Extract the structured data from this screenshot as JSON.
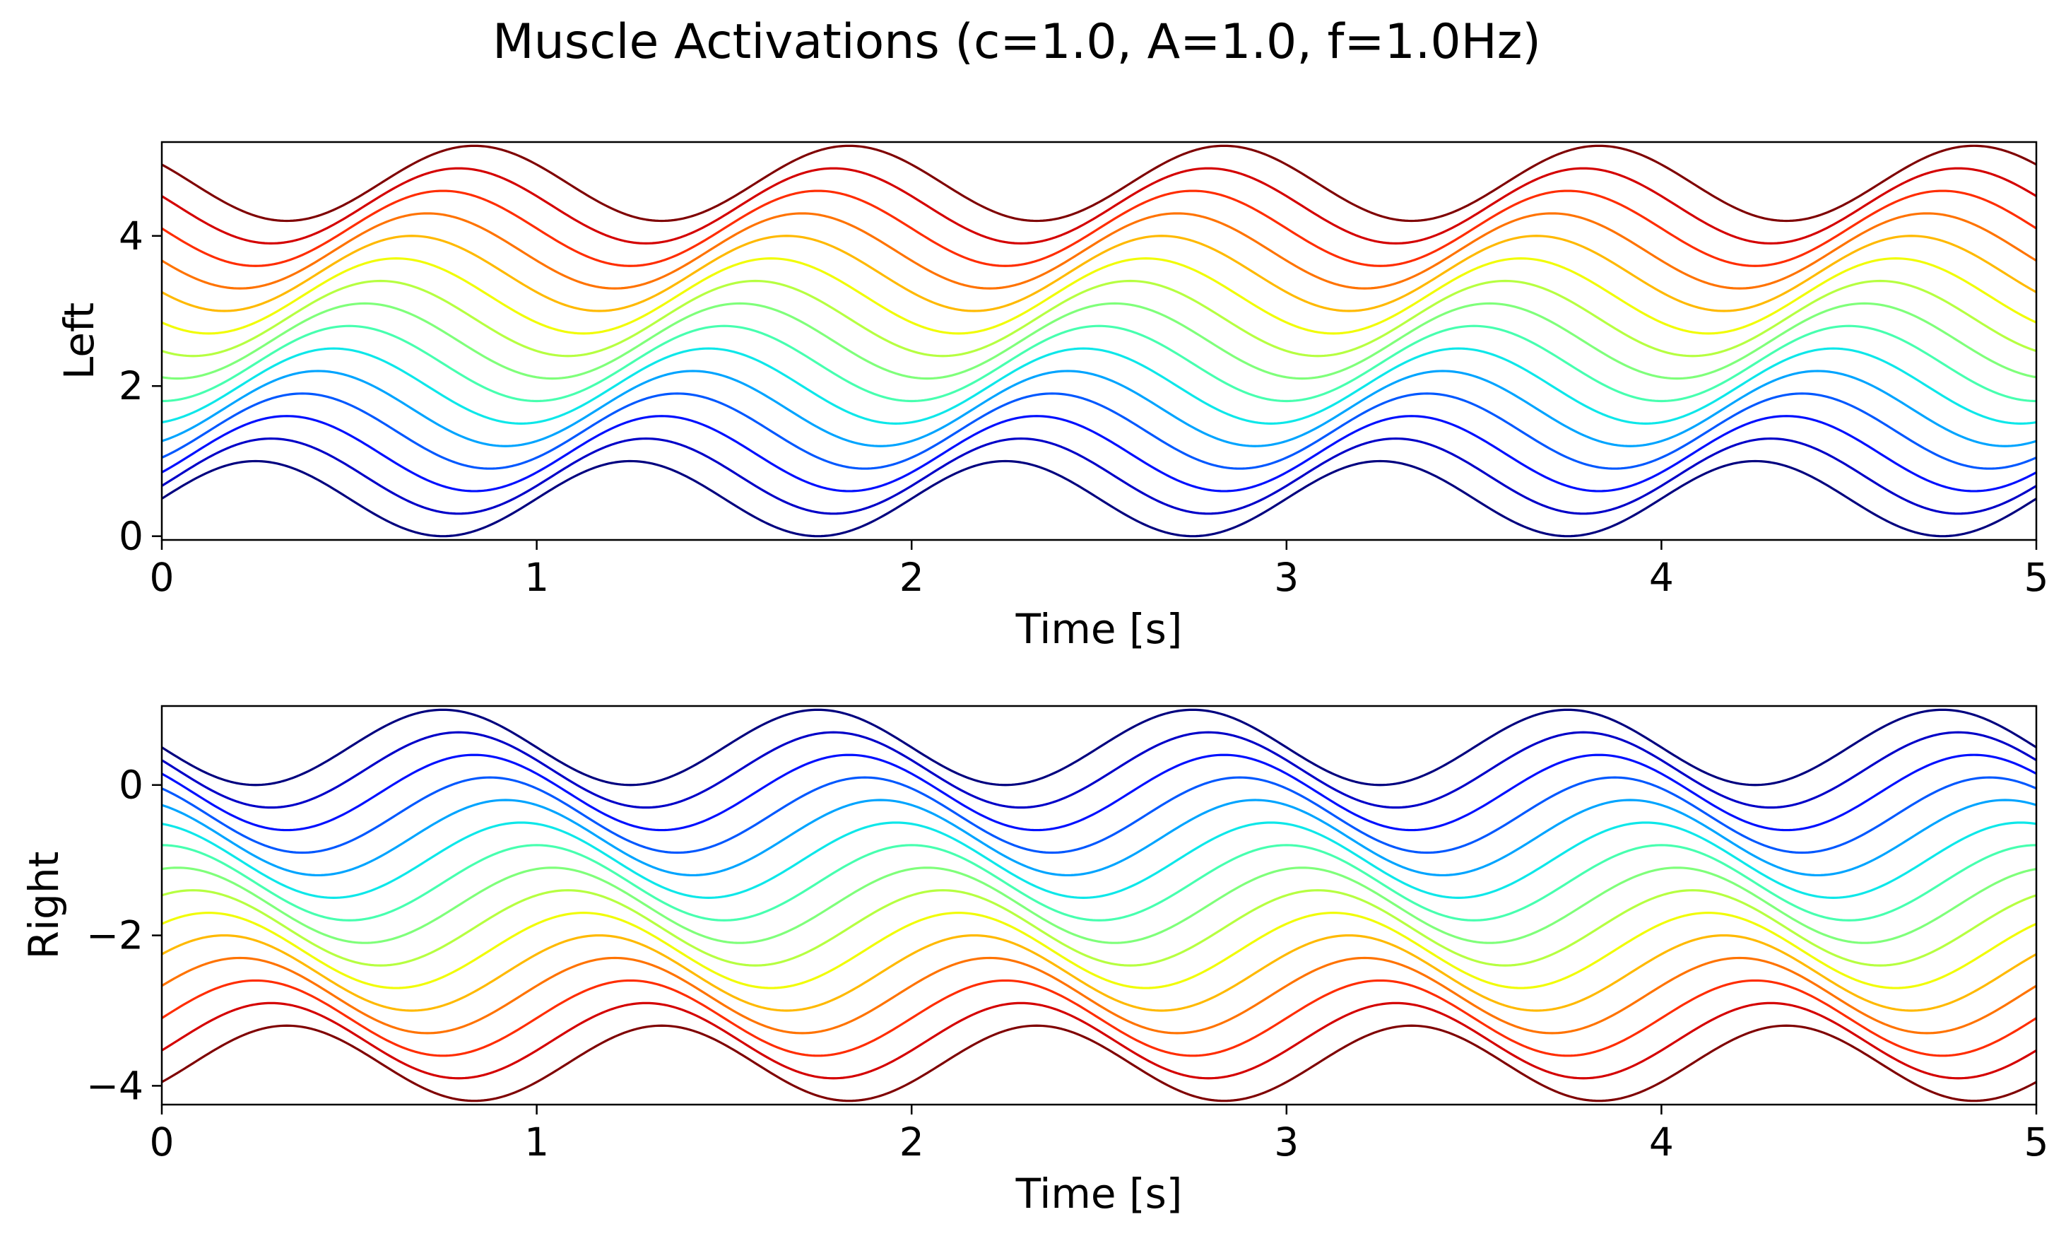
{
  "chart_data": {
    "title": "Muscle Activations (c=1.0, A=1.0, f=1.0Hz)",
    "params": {
      "c": 1.0,
      "A": 1.0,
      "f_hz": 1.0
    },
    "n_series": 15,
    "colormap": [
      "#00007f",
      "#0000c8",
      "#0010ff",
      "#0058ff",
      "#00a4ff",
      "#0de7e9",
      "#47ffaf",
      "#7fff7a",
      "#b6ff41",
      "#f1fc06",
      "#ffb900",
      "#ff7300",
      "#ff2d00",
      "#d40000",
      "#7f0000"
    ],
    "time_range": [
      0,
      5
    ],
    "subplots": [
      {
        "type": "line",
        "ylabel": "Left",
        "xlabel": "Time [s]",
        "xlim": [
          0,
          5
        ],
        "ylim": [
          -0.05,
          5.25
        ],
        "xticks": [
          "0",
          "1",
          "2",
          "3",
          "4",
          "5"
        ],
        "yticks": [
          "0",
          "2",
          "4"
        ],
        "ytick_values": [
          0,
          2,
          4
        ],
        "series_model": {
          "formula": "y = 0.5 + offset + 0.5*sin(2*pi*f*t - phase)",
          "offsets": [
            0,
            0.3,
            0.6,
            0.9,
            1.2,
            1.5,
            1.8,
            2.1,
            2.4,
            2.7,
            3.0,
            3.3,
            3.6,
            3.9,
            4.2
          ],
          "phases_rad": [
            0,
            0.2618,
            0.5236,
            0.7854,
            1.0472,
            1.309,
            1.5708,
            1.8326,
            2.0944,
            2.3562,
            2.618,
            2.8798,
            3.1416,
            3.4034,
            3.6652
          ],
          "min_value": 0,
          "max_value": 5.2
        }
      },
      {
        "type": "line",
        "ylabel": "Right",
        "xlabel": "Time [s]",
        "xlim": [
          0,
          5
        ],
        "ylim": [
          -4.25,
          1.05
        ],
        "xticks": [
          "0",
          "1",
          "2",
          "3",
          "4",
          "5"
        ],
        "yticks": [
          "0",
          "−2",
          "−4"
        ],
        "ytick_values": [
          0,
          -2,
          -4
        ],
        "series_model": {
          "formula": "y = 0.5 - offset + 0.5*sin(2*pi*f*t + pi - phase)",
          "offsets": [
            0,
            0.3,
            0.6,
            0.9,
            1.2,
            1.5,
            1.8,
            2.1,
            2.4,
            2.7,
            3.0,
            3.3,
            3.6,
            3.9,
            4.2
          ],
          "phases_rad": [
            0,
            0.2618,
            0.5236,
            0.7854,
            1.0472,
            1.309,
            1.5708,
            1.8326,
            2.0944,
            2.3562,
            2.618,
            2.8798,
            3.1416,
            3.4034,
            3.6652
          ],
          "min_value": -4.2,
          "max_value": 1.0
        }
      }
    ]
  }
}
